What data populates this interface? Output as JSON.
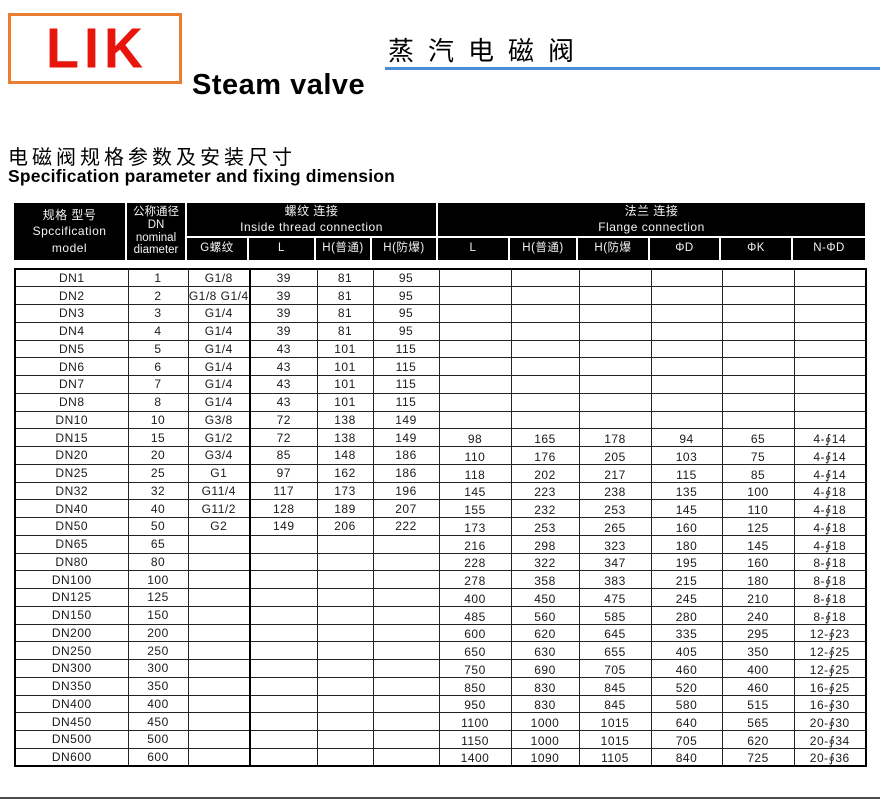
{
  "logo": {
    "text": "LIK"
  },
  "titles": {
    "product_cn": "蒸汽电磁阀",
    "product_en": "Steam valve",
    "section_cn": "电磁阀规格参数及安装尺寸",
    "section_en": "Specification parameter and fixing dimension"
  },
  "colors": {
    "logo_red": "#e8150d",
    "logo_border_orange": "#e87e2e",
    "underline_blue": "#4a8ed5",
    "header_bg": "#000000",
    "bottom_rule_gray": "#4d4d4d"
  },
  "table": {
    "header": {
      "model": {
        "cn": "规格 型号",
        "en_line1": "Spccification",
        "en_line2": "model"
      },
      "dn": {
        "cn": "公称通径",
        "line2": "DN",
        "line3": "nominal",
        "line4": "diameter"
      },
      "thread": {
        "cn": "螺纹 连接",
        "en": "Inside thread connection",
        "cols": [
          "G螺纹",
          "L",
          "H(普通)",
          "H(防爆)"
        ]
      },
      "flange": {
        "cn": "法兰 连接",
        "en": "Flange connection",
        "cols": [
          "L",
          "H(普通)",
          "H(防爆",
          "ΦD",
          "ΦK",
          "N-ΦD"
        ]
      }
    },
    "rows": [
      [
        "DN1",
        "1",
        "G1/8",
        "39",
        "81",
        "95",
        "",
        "",
        "",
        "",
        "",
        ""
      ],
      [
        "DN2",
        "2",
        "G1/8 G1/4",
        "39",
        "81",
        "95",
        "",
        "",
        "",
        "",
        "",
        ""
      ],
      [
        "DN3",
        "3",
        "G1/4",
        "39",
        "81",
        "95",
        "",
        "",
        "",
        "",
        "",
        ""
      ],
      [
        "DN4",
        "4",
        "G1/4",
        "39",
        "81",
        "95",
        "",
        "",
        "",
        "",
        "",
        ""
      ],
      [
        "DN5",
        "5",
        "G1/4",
        "43",
        "101",
        "115",
        "",
        "",
        "",
        "",
        "",
        ""
      ],
      [
        "DN6",
        "6",
        "G1/4",
        "43",
        "101",
        "115",
        "",
        "",
        "",
        "",
        "",
        ""
      ],
      [
        "DN7",
        "7",
        "G1/4",
        "43",
        "101",
        "115",
        "",
        "",
        "",
        "",
        "",
        ""
      ],
      [
        "DN8",
        "8",
        "G1/4",
        "43",
        "101",
        "115",
        "",
        "",
        "",
        "",
        "",
        ""
      ],
      [
        "DN10",
        "10",
        "G3/8",
        "72",
        "138",
        "149",
        "",
        "",
        "",
        "",
        "",
        ""
      ],
      [
        "DN15",
        "15",
        "G1/2",
        "72",
        "138",
        "149",
        "98",
        "165",
        "178",
        "94",
        "65",
        "4-∮14"
      ],
      [
        "DN20",
        "20",
        "G3/4",
        "85",
        "148",
        "186",
        "110",
        "176",
        "205",
        "103",
        "75",
        "4-∮14"
      ],
      [
        "DN25",
        "25",
        "G1",
        "97",
        "162",
        "186",
        "118",
        "202",
        "217",
        "115",
        "85",
        "4-∮14"
      ],
      [
        "DN32",
        "32",
        "G11/4",
        "117",
        "173",
        "196",
        "145",
        "223",
        "238",
        "135",
        "100",
        "4-∮18"
      ],
      [
        "DN40",
        "40",
        "G11/2",
        "128",
        "189",
        "207",
        "155",
        "232",
        "253",
        "145",
        "110",
        "4-∮18"
      ],
      [
        "DN50",
        "50",
        "G2",
        "149",
        "206",
        "222",
        "173",
        "253",
        "265",
        "160",
        "125",
        "4-∮18"
      ],
      [
        "DN65",
        "65",
        "",
        "",
        "",
        "",
        "216",
        "298",
        "323",
        "180",
        "145",
        "4-∮18"
      ],
      [
        "DN80",
        "80",
        "",
        "",
        "",
        "",
        "228",
        "322",
        "347",
        "195",
        "160",
        "8-∮18"
      ],
      [
        "DN100",
        "100",
        "",
        "",
        "",
        "",
        "278",
        "358",
        "383",
        "215",
        "180",
        "8-∮18"
      ],
      [
        "DN125",
        "125",
        "",
        "",
        "",
        "",
        "400",
        "450",
        "475",
        "245",
        "210",
        "8-∮18"
      ],
      [
        "DN150",
        "150",
        "",
        "",
        "",
        "",
        "485",
        "560",
        "585",
        "280",
        "240",
        "8-∮18"
      ],
      [
        "DN200",
        "200",
        "",
        "",
        "",
        "",
        "600",
        "620",
        "645",
        "335",
        "295",
        "12-∮23"
      ],
      [
        "DN250",
        "250",
        "",
        "",
        "",
        "",
        "650",
        "630",
        "655",
        "405",
        "350",
        "12-∮25"
      ],
      [
        "DN300",
        "300",
        "",
        "",
        "",
        "",
        "750",
        "690",
        "705",
        "460",
        "400",
        "12-∮25"
      ],
      [
        "DN350",
        "350",
        "",
        "",
        "",
        "",
        "850",
        "830",
        "845",
        "520",
        "460",
        "16-∮25"
      ],
      [
        "DN400",
        "400",
        "",
        "",
        "",
        "",
        "950",
        "830",
        "845",
        "580",
        "515",
        "16-∮30"
      ],
      [
        "DN450",
        "450",
        "",
        "",
        "",
        "",
        "1100",
        "1000",
        "1015",
        "640",
        "565",
        "20-∮30"
      ],
      [
        "DN500",
        "500",
        "",
        "",
        "",
        "",
        "1150",
        "1000",
        "1015",
        "705",
        "620",
        "20-∮34"
      ],
      [
        "DN600",
        "600",
        "",
        "",
        "",
        "",
        "1400",
        "1090",
        "1105",
        "840",
        "725",
        "20-∮36"
      ]
    ]
  }
}
